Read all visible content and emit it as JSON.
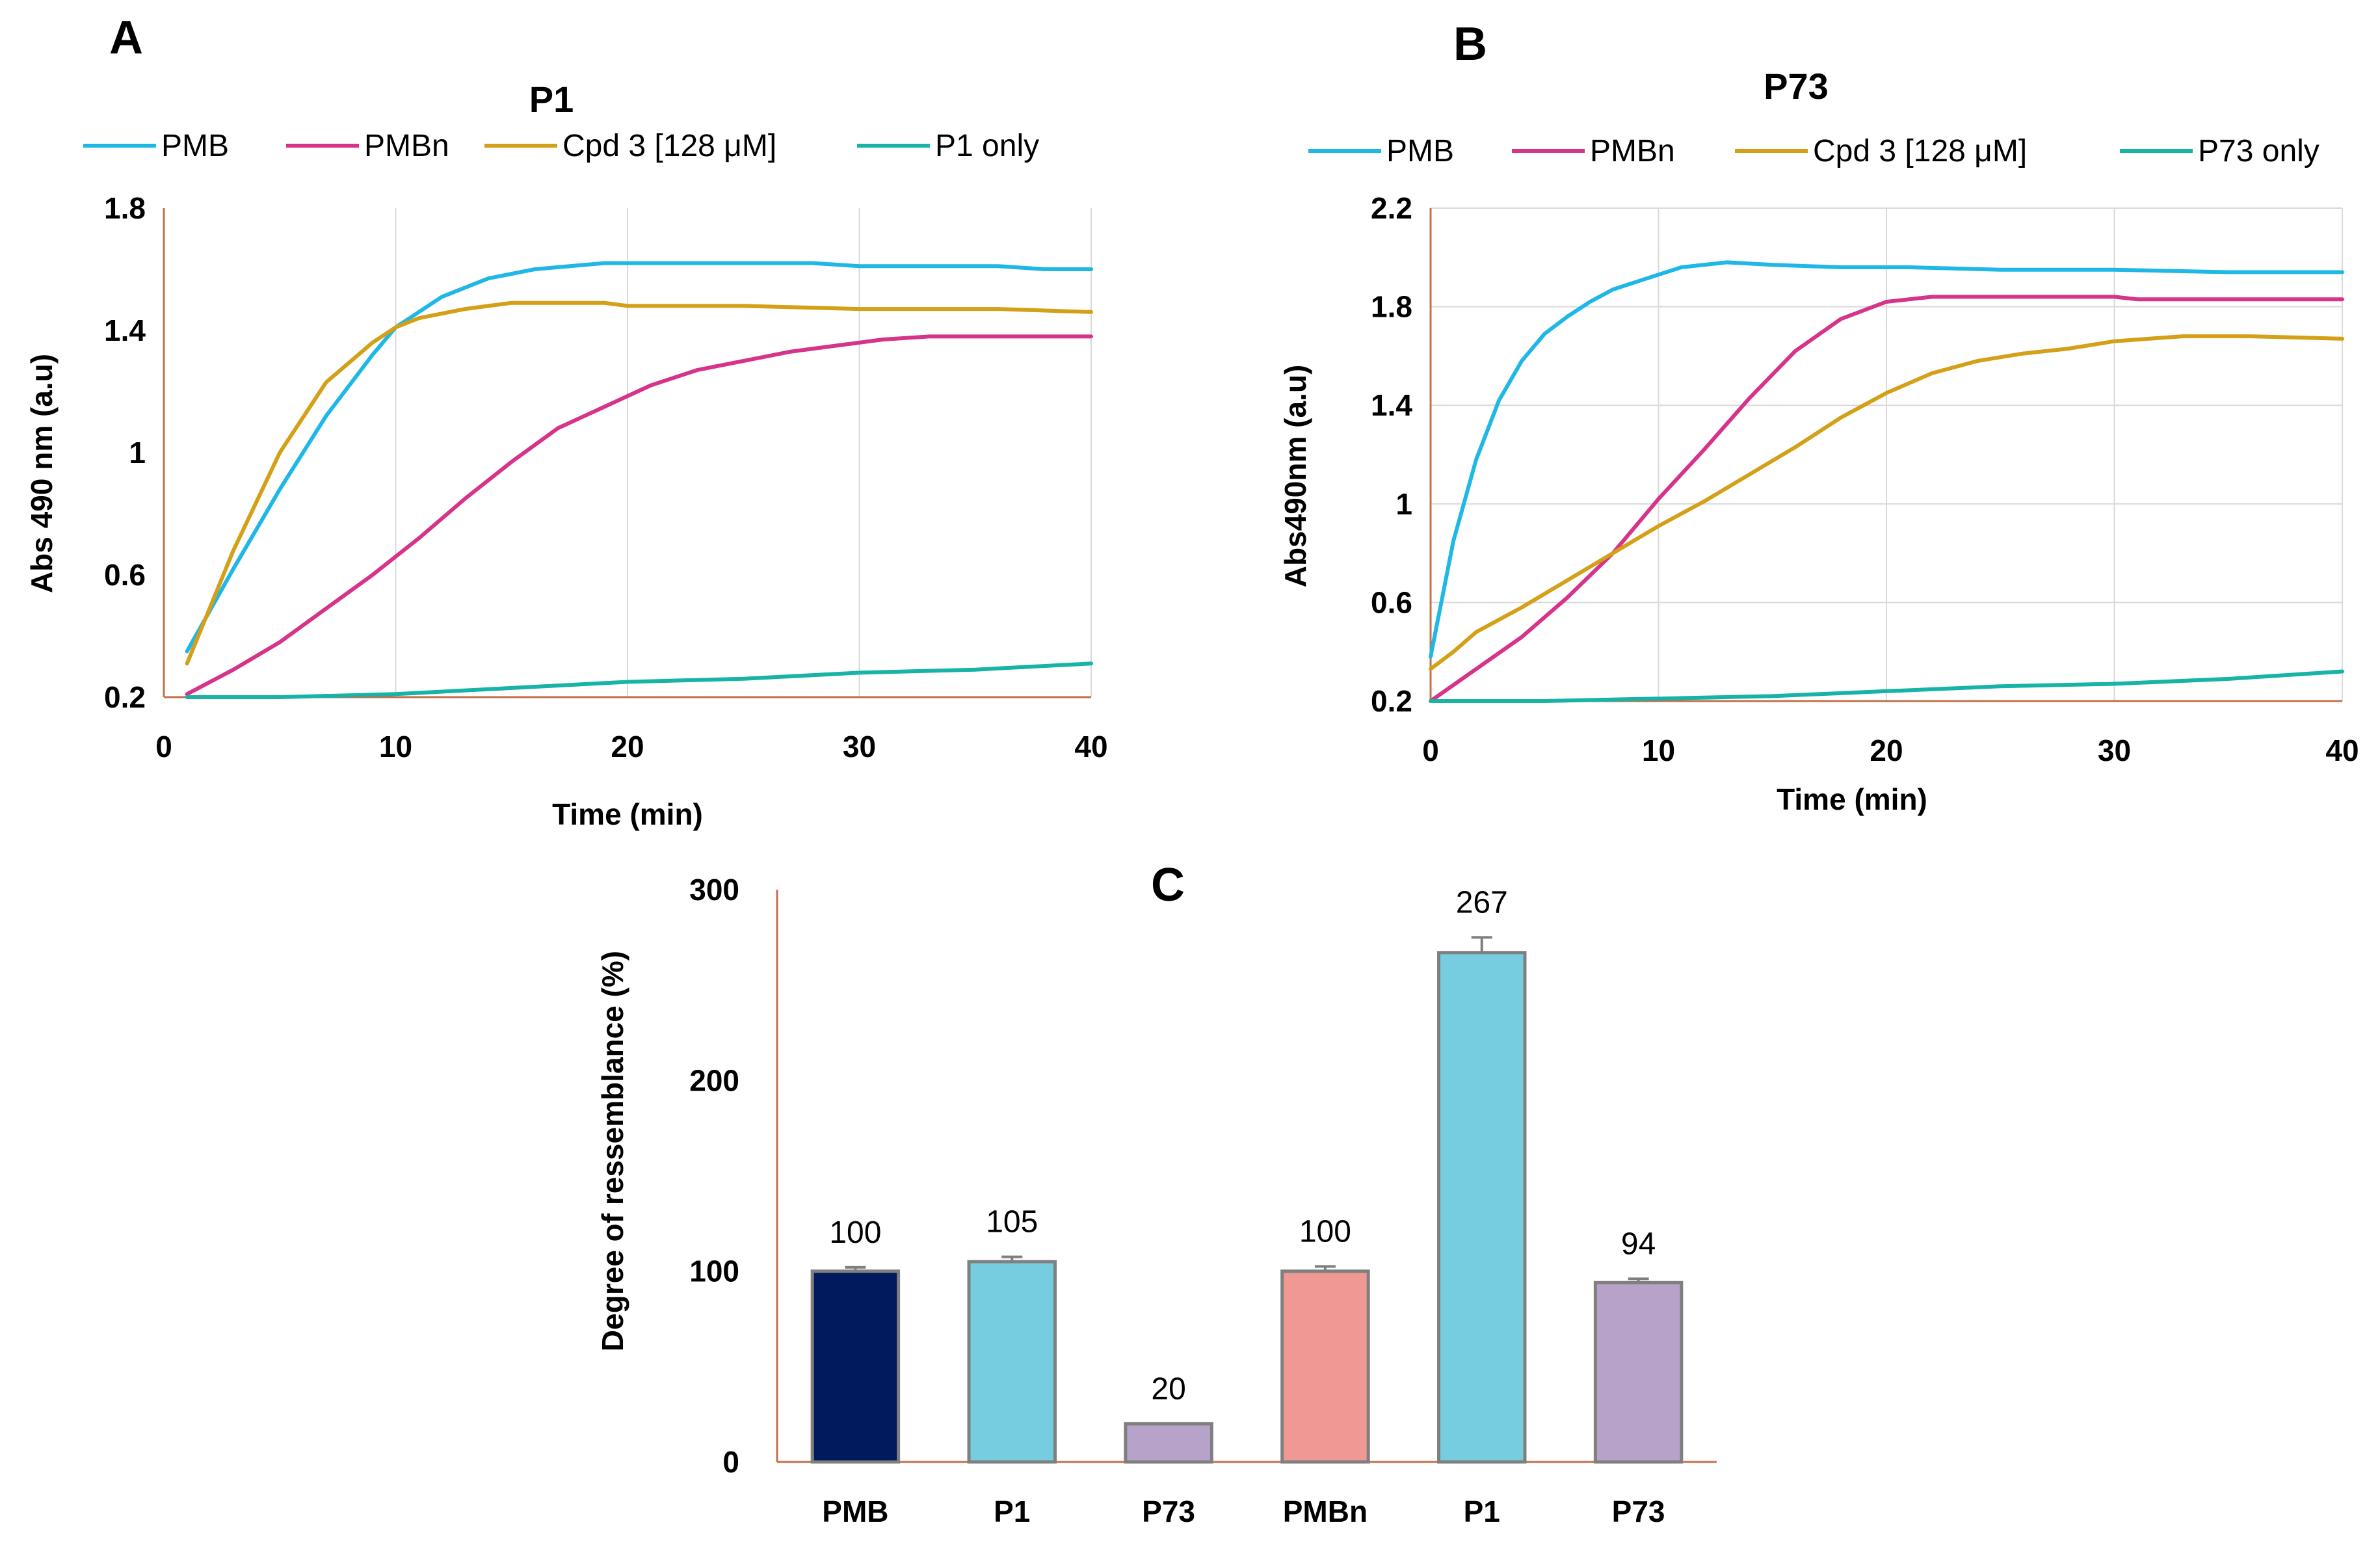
{
  "figure": {
    "panels": [
      "A",
      "B",
      "C"
    ]
  },
  "chart_data": [
    {
      "type": "line",
      "panel": "A",
      "title": "P1",
      "xlabel": "Time (min)",
      "ylabel": "Abs 490 nm (a.u)",
      "xlim": [
        0,
        40
      ],
      "ylim": [
        0.2,
        1.8
      ],
      "xticks": [
        "0",
        "10",
        "20",
        "30",
        "40"
      ],
      "yticks": [
        "0.2",
        "0.6",
        "1",
        "1.4",
        "1.8"
      ],
      "grid": "vertical",
      "legend_position": "top",
      "series": [
        {
          "name": "PMB",
          "color": "#1fb8e6",
          "x": [
            1,
            3,
            5,
            7,
            9,
            10,
            12,
            14,
            16,
            19,
            22,
            25,
            28,
            30,
            33,
            36,
            38,
            40
          ],
          "y": [
            0.35,
            0.62,
            0.88,
            1.12,
            1.32,
            1.41,
            1.51,
            1.57,
            1.6,
            1.62,
            1.62,
            1.62,
            1.62,
            1.61,
            1.61,
            1.61,
            1.6,
            1.6
          ]
        },
        {
          "name": "PMBn",
          "color": "#d6338a",
          "x": [
            1,
            3,
            5,
            7,
            9,
            11,
            13,
            15,
            17,
            19,
            21,
            23,
            25,
            27,
            29,
            31,
            33,
            35,
            37,
            40
          ],
          "y": [
            0.21,
            0.29,
            0.38,
            0.49,
            0.6,
            0.72,
            0.85,
            0.97,
            1.08,
            1.15,
            1.22,
            1.27,
            1.3,
            1.33,
            1.35,
            1.37,
            1.38,
            1.38,
            1.38,
            1.38
          ]
        },
        {
          "name": "Cpd 3 [128 μM]",
          "color": "#d4a017",
          "x": [
            1,
            3,
            5,
            7,
            9,
            10,
            11,
            13,
            15,
            16,
            17,
            18,
            19,
            20,
            25,
            30,
            33,
            36,
            40
          ],
          "y": [
            0.31,
            0.68,
            1.0,
            1.23,
            1.36,
            1.41,
            1.44,
            1.47,
            1.49,
            1.49,
            1.49,
            1.49,
            1.49,
            1.48,
            1.48,
            1.47,
            1.47,
            1.47,
            1.46
          ]
        },
        {
          "name": "P1 only",
          "color": "#17b3a6",
          "x": [
            1,
            5,
            10,
            15,
            20,
            25,
            30,
            35,
            40
          ],
          "y": [
            0.2,
            0.2,
            0.21,
            0.23,
            0.25,
            0.26,
            0.28,
            0.29,
            0.31
          ]
        }
      ]
    },
    {
      "type": "line",
      "panel": "B",
      "title": "P73",
      "xlabel": "Time (min)",
      "ylabel": "Abs490nm (a.u)",
      "xlim": [
        0,
        40
      ],
      "ylim": [
        0.2,
        2.2
      ],
      "xticks": [
        "0",
        "10",
        "20",
        "30",
        "40"
      ],
      "yticks": [
        "0.2",
        "0.6",
        "1",
        "1.4",
        "1.8",
        "2.2"
      ],
      "grid": "both",
      "legend_position": "top",
      "series": [
        {
          "name": "PMB",
          "color": "#1fb8e6",
          "x": [
            0,
            1,
            2,
            3,
            4,
            5,
            6,
            7,
            8,
            9,
            10,
            11,
            13,
            15,
            18,
            21,
            25,
            30,
            35,
            40
          ],
          "y": [
            0.38,
            0.85,
            1.18,
            1.42,
            1.58,
            1.69,
            1.76,
            1.82,
            1.87,
            1.9,
            1.93,
            1.96,
            1.98,
            1.97,
            1.96,
            1.96,
            1.95,
            1.95,
            1.94,
            1.94
          ]
        },
        {
          "name": "PMBn",
          "color": "#d6338a",
          "x": [
            0,
            2,
            4,
            6,
            8,
            10,
            12,
            14,
            16,
            18,
            20,
            22,
            25,
            30,
            31,
            35,
            40
          ],
          "y": [
            0.2,
            0.33,
            0.46,
            0.62,
            0.8,
            1.02,
            1.22,
            1.43,
            1.62,
            1.75,
            1.82,
            1.84,
            1.84,
            1.84,
            1.83,
            1.83,
            1.83
          ]
        },
        {
          "name": "Cpd 3  [128 μM]",
          "color": "#d4a017",
          "x": [
            0,
            1,
            2,
            3,
            4,
            6,
            8,
            10,
            12,
            14,
            16,
            18,
            20,
            22,
            24,
            26,
            28,
            30,
            33,
            36,
            40
          ],
          "y": [
            0.33,
            0.4,
            0.48,
            0.53,
            0.58,
            0.69,
            0.8,
            0.91,
            1.01,
            1.12,
            1.23,
            1.35,
            1.45,
            1.53,
            1.58,
            1.61,
            1.63,
            1.66,
            1.68,
            1.68,
            1.67
          ]
        },
        {
          "name": "P73 only",
          "color": "#17b3a6",
          "x": [
            0,
            5,
            10,
            15,
            20,
            25,
            30,
            35,
            40
          ],
          "y": [
            0.2,
            0.2,
            0.21,
            0.22,
            0.24,
            0.26,
            0.27,
            0.29,
            0.32
          ]
        }
      ]
    },
    {
      "type": "bar",
      "panel": "C",
      "title": "",
      "xlabel": "",
      "ylabel": "Degree of ressemblance (%)",
      "ylim": [
        0,
        300
      ],
      "yticks": [
        "0",
        "100",
        "200",
        "300"
      ],
      "categories": [
        "PMB",
        "P1",
        "P73",
        "PMBn",
        "P1",
        "P73"
      ],
      "values": [
        100,
        105,
        20,
        100,
        267,
        94
      ],
      "errors": [
        2,
        2.5,
        0,
        2.5,
        8,
        2
      ],
      "colors": [
        "#001a5e",
        "#76cde0",
        "#b7a3ca",
        "#ef9894",
        "#76cde0",
        "#b7a3ca"
      ],
      "data_labels": [
        "100",
        "105",
        "20",
        "100",
        "267",
        "94"
      ]
    }
  ]
}
